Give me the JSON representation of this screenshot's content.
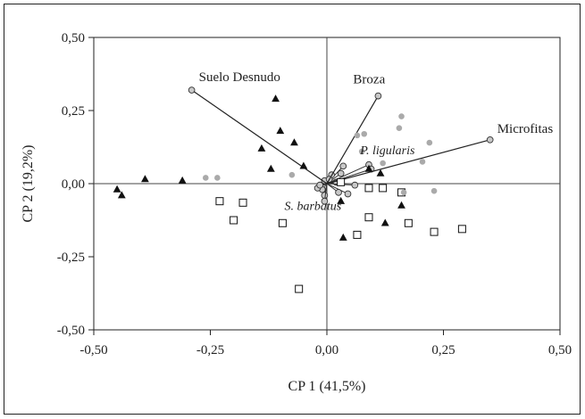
{
  "chart_data": {
    "type": "scatter",
    "xlabel": "CP 1 (41,5%)",
    "ylabel": "CP 2 (19,2%)",
    "xlim": [
      -0.5,
      0.5
    ],
    "ylim": [
      -0.5,
      0.5
    ],
    "x_ticks": [
      "-0,50",
      "-0,25",
      "0,00",
      "0,25",
      "0,50"
    ],
    "y_ticks": [
      "-0,50",
      "-0,25",
      "0,00",
      "0,25",
      "0,50"
    ],
    "x_tick_values": [
      -0.5,
      -0.25,
      0,
      0.25,
      0.5
    ],
    "y_tick_values": [
      -0.5,
      -0.25,
      0,
      0.25,
      0.5
    ],
    "grid": false,
    "reference_lines": [
      {
        "axis": "x",
        "value": 0
      },
      {
        "axis": "y",
        "value": 0
      }
    ],
    "vectors": [
      {
        "label": "Suelo Desnudo",
        "x": -0.29,
        "y": 0.32
      },
      {
        "label": "Broza",
        "x": 0.11,
        "y": 0.3
      },
      {
        "label": "Microfitas",
        "x": 0.35,
        "y": 0.15
      }
    ],
    "species_labels": [
      {
        "label": "P. ligularis",
        "x": 0.13,
        "y": 0.1
      },
      {
        "label": "S. barbatus",
        "x": -0.03,
        "y": -0.09
      }
    ],
    "species_vectors": [
      {
        "x": 0.035,
        "y": 0.06
      },
      {
        "x": 0.03,
        "y": 0.035
      },
      {
        "x": 0.01,
        "y": 0.03
      },
      {
        "x": 0.02,
        "y": 0.005
      },
      {
        "x": 0.09,
        "y": 0.065
      },
      {
        "x": 0.095,
        "y": 0.05
      },
      {
        "x": 0.06,
        "y": -0.005
      },
      {
        "x": 0.045,
        "y": -0.035
      },
      {
        "x": 0.025,
        "y": -0.03
      },
      {
        "x": -0.005,
        "y": -0.04
      },
      {
        "x": -0.005,
        "y": -0.06
      },
      {
        "x": -0.01,
        "y": -0.02
      },
      {
        "x": -0.02,
        "y": -0.015
      },
      {
        "x": -0.015,
        "y": -0.005
      },
      {
        "x": -0.005,
        "y": 0.01
      },
      {
        "x": 0.005,
        "y": 0.015
      }
    ],
    "series": [
      {
        "marker": "triangle",
        "color": "#111111",
        "points": [
          {
            "x": -0.45,
            "y": -0.02
          },
          {
            "x": -0.44,
            "y": -0.04
          },
          {
            "x": -0.39,
            "y": 0.015
          },
          {
            "x": -0.31,
            "y": 0.01
          },
          {
            "x": -0.11,
            "y": 0.29
          },
          {
            "x": -0.1,
            "y": 0.18
          },
          {
            "x": -0.07,
            "y": 0.14
          },
          {
            "x": -0.14,
            "y": 0.12
          },
          {
            "x": -0.12,
            "y": 0.05
          },
          {
            "x": -0.05,
            "y": 0.06
          },
          {
            "x": 0.03,
            "y": -0.06
          },
          {
            "x": 0.035,
            "y": -0.185
          },
          {
            "x": 0.125,
            "y": -0.135
          },
          {
            "x": 0.16,
            "y": -0.075
          },
          {
            "x": 0.115,
            "y": 0.035
          },
          {
            "x": 0.09,
            "y": 0.05
          }
        ]
      },
      {
        "marker": "square",
        "color": "#111111",
        "points": [
          {
            "x": -0.06,
            "y": -0.36
          },
          {
            "x": -0.23,
            "y": -0.06
          },
          {
            "x": -0.2,
            "y": -0.125
          },
          {
            "x": -0.18,
            "y": -0.065
          },
          {
            "x": -0.095,
            "y": -0.135
          },
          {
            "x": 0.03,
            "y": 0.005
          },
          {
            "x": 0.065,
            "y": -0.175
          },
          {
            "x": 0.09,
            "y": -0.015
          },
          {
            "x": 0.09,
            "y": -0.115
          },
          {
            "x": 0.12,
            "y": -0.015
          },
          {
            "x": 0.16,
            "y": -0.03
          },
          {
            "x": 0.175,
            "y": -0.135
          },
          {
            "x": 0.23,
            "y": -0.165
          },
          {
            "x": 0.29,
            "y": -0.155
          }
        ]
      },
      {
        "marker": "circle",
        "color": "#aaaaaa",
        "points": [
          {
            "x": -0.26,
            "y": 0.02
          },
          {
            "x": -0.235,
            "y": 0.02
          },
          {
            "x": -0.075,
            "y": 0.03
          },
          {
            "x": 0.065,
            "y": 0.165
          },
          {
            "x": 0.075,
            "y": 0.11
          },
          {
            "x": 0.08,
            "y": 0.17
          },
          {
            "x": 0.12,
            "y": 0.07
          },
          {
            "x": 0.155,
            "y": 0.19
          },
          {
            "x": 0.16,
            "y": 0.23
          },
          {
            "x": 0.165,
            "y": -0.03
          },
          {
            "x": 0.205,
            "y": 0.075
          },
          {
            "x": 0.22,
            "y": 0.14
          },
          {
            "x": 0.23,
            "y": -0.025
          }
        ]
      }
    ]
  }
}
